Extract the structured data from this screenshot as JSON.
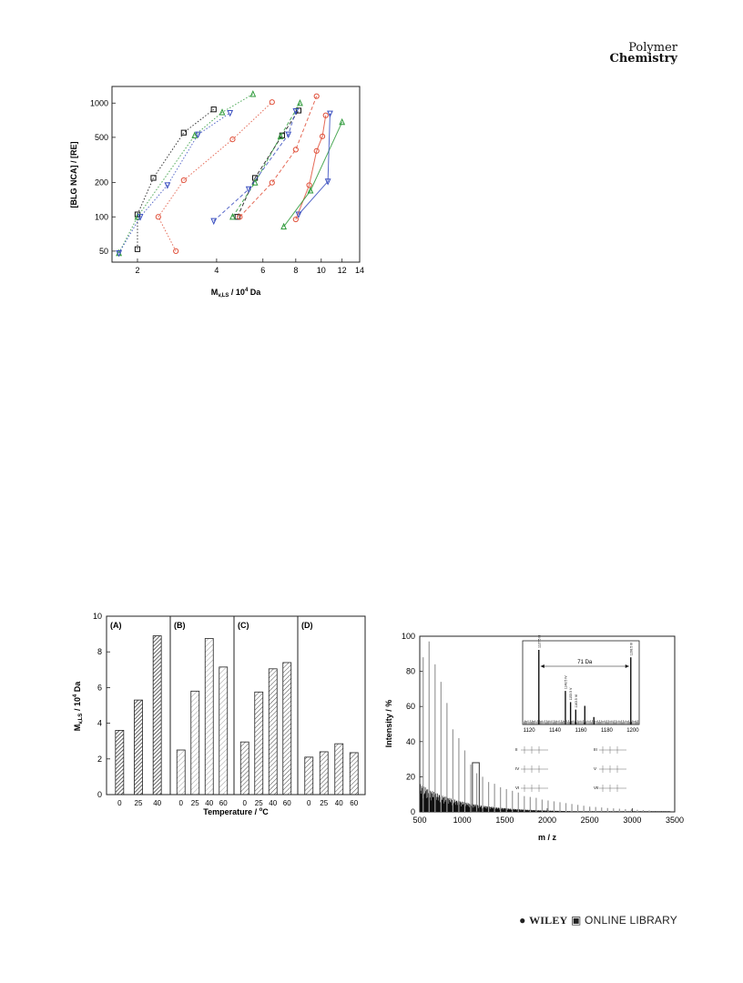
{
  "header": {
    "journal_line1": "Polymer",
    "journal_line2": "Chemistry"
  },
  "figure_top": {
    "chart_data": {
      "type": "scatter",
      "xlabel": "M_v,LS / 10^4 Da",
      "ylabel": "[BLG NCA] / [RE]",
      "x_scale": "log",
      "y_scale": "log",
      "xlim": [
        1.6,
        14
      ],
      "ylim": [
        40,
        1400
      ],
      "x_ticks": [
        2,
        4,
        6,
        8,
        10,
        12,
        14
      ],
      "y_ticks": [
        50,
        100,
        200,
        500,
        1000
      ],
      "series": [
        {
          "marker": "square",
          "color": "#111111",
          "style": "dotted",
          "points": [
            [
              2.0,
              52
            ],
            [
              2.0,
              105
            ],
            [
              2.3,
              220
            ],
            [
              3.0,
              550
            ],
            [
              3.9,
              880
            ]
          ]
        },
        {
          "marker": "triangle",
          "color": "#2e9a3a",
          "style": "dotted",
          "points": [
            [
              1.7,
              48
            ],
            [
              2.0,
              100
            ],
            [
              3.3,
              520
            ],
            [
              4.2,
              830
            ],
            [
              5.5,
              1200
            ]
          ]
        },
        {
          "marker": "triangle-down",
          "color": "#3a4fc0",
          "style": "dotted",
          "points": [
            [
              1.7,
              48
            ],
            [
              2.05,
              100
            ],
            [
              2.6,
              190
            ],
            [
              3.4,
              530
            ],
            [
              4.5,
              820
            ]
          ]
        },
        {
          "marker": "circle",
          "color": "#e0503a",
          "style": "dotted",
          "points": [
            [
              2.8,
              50
            ],
            [
              2.4,
              100
            ],
            [
              3.0,
              210
            ],
            [
              4.6,
              480
            ],
            [
              6.5,
              1020
            ]
          ]
        },
        {
          "marker": "square",
          "color": "#111111",
          "style": "dashed",
          "points": [
            [
              4.8,
              100
            ],
            [
              5.6,
              220
            ],
            [
              7.1,
              520
            ],
            [
              8.2,
              860
            ]
          ]
        },
        {
          "marker": "triangle",
          "color": "#2e9a3a",
          "style": "dashed",
          "points": [
            [
              4.6,
              100
            ],
            [
              5.6,
              200
            ],
            [
              7.0,
              510
            ],
            [
              8.3,
              1000
            ]
          ]
        },
        {
          "marker": "triangle-down",
          "color": "#3a4fc0",
          "style": "dashed",
          "points": [
            [
              3.9,
              92
            ],
            [
              5.3,
              175
            ],
            [
              7.5,
              530
            ],
            [
              8.0,
              850
            ]
          ]
        },
        {
          "marker": "circle",
          "color": "#e0503a",
          "style": "dashed",
          "points": [
            [
              4.9,
              100
            ],
            [
              6.5,
              200
            ],
            [
              8.0,
              390
            ],
            [
              9.6,
              1150
            ]
          ]
        },
        {
          "marker": "circle",
          "color": "#e0503a",
          "style": "solid",
          "points": [
            [
              8.0,
              95
            ],
            [
              9.0,
              190
            ],
            [
              9.6,
              380
            ],
            [
              10.1,
              510
            ],
            [
              10.4,
              780
            ]
          ]
        },
        {
          "marker": "triangle",
          "color": "#2e9a3a",
          "style": "solid",
          "points": [
            [
              7.2,
              82
            ],
            [
              9.1,
              170
            ],
            [
              12.0,
              680
            ]
          ]
        },
        {
          "marker": "triangle-down",
          "color": "#3a4fc0",
          "style": "solid",
          "points": [
            [
              8.2,
              105
            ],
            [
              10.6,
              205
            ],
            [
              10.8,
              810
            ]
          ]
        }
      ]
    }
  },
  "figure_bar": {
    "chart_data": {
      "type": "bar",
      "ylabel": "M_v,LS / 10^4 Da",
      "xlabel": "Temperature / °C",
      "ylim": [
        0,
        10
      ],
      "y_ticks": [
        0,
        2,
        4,
        6,
        8,
        10
      ],
      "panels": [
        {
          "label": "(A)",
          "categories": [
            "0",
            "25",
            "40"
          ],
          "values": [
            3.6,
            5.3,
            8.9
          ],
          "pattern": "dense"
        },
        {
          "label": "(B)",
          "categories": [
            "0",
            "25",
            "40",
            "60"
          ],
          "values": [
            2.5,
            5.8,
            8.75,
            7.15
          ],
          "pattern": "light"
        },
        {
          "label": "(C)",
          "categories": [
            "0",
            "25",
            "40",
            "60"
          ],
          "values": [
            2.95,
            5.75,
            7.05,
            7.4
          ],
          "pattern": "medium"
        },
        {
          "label": "(D)",
          "categories": [
            "0",
            "25",
            "40",
            "60"
          ],
          "values": [
            2.1,
            2.4,
            2.85,
            2.35
          ],
          "pattern": "medium"
        }
      ]
    }
  },
  "figure_ms": {
    "chart_data": {
      "type": "bar",
      "xlabel": "m / z",
      "ylabel": "Intensity / %",
      "xlim": [
        500,
        3500
      ],
      "ylim": [
        0,
        100
      ],
      "x_ticks": [
        500,
        1000,
        1500,
        2000,
        2500,
        3000,
        3500
      ],
      "y_ticks": [
        0,
        20,
        40,
        60,
        80,
        100
      ],
      "peaks": [
        [
          540,
          88
        ],
        [
          610,
          97
        ],
        [
          680,
          84
        ],
        [
          750,
          74
        ],
        [
          820,
          62
        ],
        [
          890,
          47
        ],
        [
          960,
          42
        ],
        [
          1030,
          35
        ],
        [
          1100,
          27
        ],
        [
          1170,
          22
        ],
        [
          1240,
          20
        ],
        [
          1310,
          17
        ],
        [
          1380,
          16
        ],
        [
          1450,
          14
        ],
        [
          1520,
          13
        ],
        [
          1590,
          12
        ],
        [
          1660,
          11
        ],
        [
          1730,
          9
        ],
        [
          1800,
          8.5
        ],
        [
          1870,
          8
        ],
        [
          1940,
          7
        ],
        [
          2010,
          6.5
        ],
        [
          2080,
          6
        ],
        [
          2150,
          5.5
        ],
        [
          2220,
          5
        ],
        [
          2290,
          4.5
        ],
        [
          2360,
          4
        ],
        [
          2430,
          3.5
        ],
        [
          2500,
          3
        ],
        [
          2570,
          2.8
        ],
        [
          2640,
          2.5
        ],
        [
          2710,
          2.2
        ],
        [
          2780,
          2
        ],
        [
          2850,
          1.8
        ],
        [
          2920,
          1.6
        ],
        [
          2990,
          1.4
        ],
        [
          3060,
          1.2
        ],
        [
          3130,
          1
        ],
        [
          3200,
          0.8
        ]
      ],
      "inset": {
        "annotation": "71 Da",
        "xlim": [
          1115,
          1205
        ],
        "x_ticks": [
          1120,
          1140,
          1160,
          1180,
          1200
        ],
        "peaks": [
          [
            1127.5,
            100
          ],
          [
            1148,
            45
          ],
          [
            1152,
            30
          ],
          [
            1156,
            20
          ],
          [
            1163,
            25
          ],
          [
            1170,
            10
          ],
          [
            1198.5,
            90
          ]
        ],
        "peak_labels": [
          "1127.5 III",
          "1148.5 IV",
          "1153.5 V",
          "1163.5 VI",
          "1198.5 III"
        ]
      },
      "structure_labels": [
        "II",
        "III",
        "IV",
        "V",
        "VI",
        "VII"
      ]
    }
  },
  "footer": {
    "publisher": "WILEY",
    "library": "ONLINE LIBRARY"
  }
}
